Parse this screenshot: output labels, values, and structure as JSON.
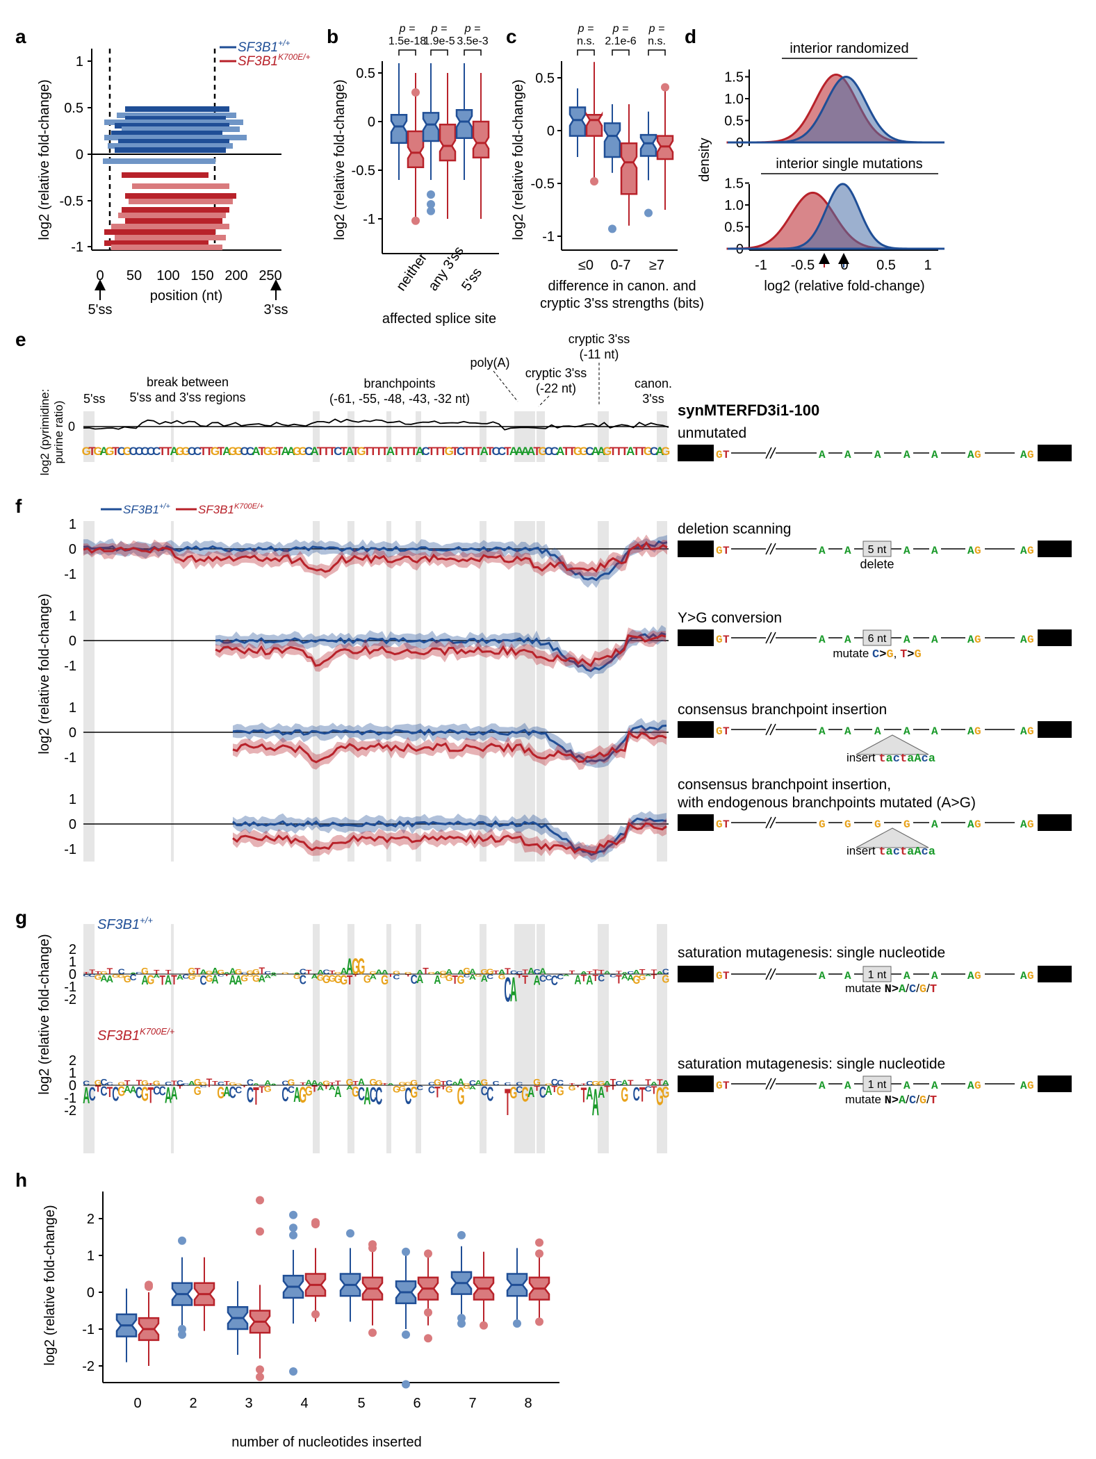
{
  "panels": {
    "a": "a",
    "b": "b",
    "c": "c",
    "d": "d",
    "e": "e",
    "f": "f",
    "g": "g",
    "h": "h"
  },
  "colors": {
    "wt": "#1f4e96",
    "wt_light": "#6f95c6",
    "mut": "#b8222a",
    "mut_light": "#d97a7d",
    "A": "#1a9a2a",
    "C": "#1f4e96",
    "G": "#e8a21a",
    "T": "#c0262c"
  },
  "legend": {
    "wt_prefix": "SF3B1",
    "wt_sup": "+/+",
    "mut_prefix": "SF3B1",
    "mut_sup": "K700E/+"
  },
  "panel_a": {
    "ylabel": "log2 (relative fold-change)",
    "yticks": [
      "1",
      "0.5",
      "0",
      "-0.5",
      "-1"
    ],
    "xticks": [
      "0",
      "50",
      "100",
      "150",
      "200",
      "250"
    ],
    "xlabel": "position (nt)",
    "arrow_5ss": "5'ss",
    "arrow_3ss": "3'ss"
  },
  "panel_b": {
    "pvals": [
      {
        "p": "p =",
        "v": "1.5e-18"
      },
      {
        "p": "p =",
        "v": "1.9e-5"
      },
      {
        "p": "p =",
        "v": "3.5e-3"
      }
    ],
    "yticks": [
      "0.5",
      "0",
      "-0.5",
      "-1"
    ],
    "ylabel": "log2 (relative fold-change)",
    "categories": [
      "neither",
      "any 3'ss",
      "5'ss"
    ],
    "xlabel": "affected splice site",
    "medians_wt": [
      -0.05,
      -0.03,
      0.0
    ],
    "medians_mut": [
      -0.32,
      -0.25,
      -0.22
    ]
  },
  "panel_c": {
    "pvals": [
      {
        "p": "p =",
        "v": "n.s."
      },
      {
        "p": "p =",
        "v": "2.1e-6"
      },
      {
        "p": "p =",
        "v": "n.s."
      }
    ],
    "yticks": [
      "0.5",
      "0",
      "-0.5",
      "-1"
    ],
    "ylabel": "log2 (relative fold-change)",
    "categories": [
      "≤0",
      "0-7",
      "≥7"
    ],
    "xlabel1": "difference in canon. and",
    "xlabel2": "cryptic 3'ss strengths (bits)",
    "medians_wt": [
      0.1,
      -0.05,
      -0.12
    ],
    "medians_mut": [
      0.1,
      -0.3,
      -0.15
    ]
  },
  "panel_d": {
    "top_title": "interior randomized",
    "bottom_title": "interior single mutations",
    "yticks": [
      "1.5",
      "1.0",
      "0.5",
      "0"
    ],
    "ylabel": "density",
    "xticks": [
      "-1",
      "-0.5",
      "0",
      "0.5",
      "1"
    ],
    "xlabel": "log2 (relative fold-change)"
  },
  "panel_e": {
    "ylabel1": "log2 (pyrimidine:",
    "ylabel2": "purine ratio)",
    "zero": "0",
    "ann_5ss": "5'ss",
    "ann_break1": "break between",
    "ann_break2": "5'ss and 3'ss regions",
    "ann_bp1": "branchpoints",
    "ann_bp2": "(-61, -55, -48, -43, -32 nt)",
    "ann_polya": "poly(A)",
    "ann_c22a": "cryptic 3'ss",
    "ann_c22b": "(-22 nt)",
    "ann_c11a": "cryptic 3'ss",
    "ann_c11b": "(-11 nt)",
    "ann_canon1": "canon.",
    "ann_canon2": "3'ss",
    "sequence": "GTGAGTCGCCCCCTTAGGCCTTGTAGGCCATGGTAAGGCATTTCTATGTTTTATTTTACTTTGTCTTTATCCTAAAATGCCATTGGCAAGTTTATTGCAG",
    "construct_name": "synMTERFD3i1-100",
    "construct_sub": "unmutated"
  },
  "panel_f": {
    "ylabel": "log2 (relative fold-change)",
    "yticks": [
      "1",
      "0",
      "-1"
    ],
    "schematics": [
      {
        "title": "deletion scanning",
        "box": "5 nt",
        "sub": "delete"
      },
      {
        "title": "Y>G conversion",
        "box": "6 nt",
        "sub": "mutate"
      },
      {
        "title": "consensus branchpoint insertion",
        "box": "",
        "sub": "insert"
      },
      {
        "title": "consensus branchpoint insertion,",
        "title2": "with endogenous branchpoints mutated (A>G)",
        "box": "",
        "sub": "insert"
      }
    ],
    "yg_mut1": "C>G",
    "yg_mut2": "T>G",
    "insert_seq": "tactaAca"
  },
  "panel_g": {
    "ylabel": "log2 (relative fold-change)",
    "yticks": [
      "2",
      "1",
      "0",
      "-1",
      "-2"
    ],
    "wt_label": "SF3B1+/+",
    "mut_label": "SF3B1K700E/+",
    "sat_title": "saturation mutagenesis: single nucleotide",
    "box": "1 nt",
    "mutate_word": "mutate",
    "mutate_from": "N>",
    "mutate_to": [
      "A",
      "C",
      "G",
      "T"
    ]
  },
  "schematic_labels": {
    "gt": "GT",
    "a": "A",
    "ag": "AG",
    "g": "G"
  },
  "panel_h": {
    "ylabel": "log2 (relative fold-change)",
    "yticks": [
      "2",
      "1",
      "0",
      "-1",
      "-2"
    ],
    "xlabel": "number of nucleotides inserted",
    "categories": [
      "0",
      "2",
      "3",
      "4",
      "5",
      "6",
      "7",
      "8"
    ],
    "medians_wt": [
      -0.9,
      -0.05,
      -0.7,
      0.15,
      0.2,
      0.0,
      0.25,
      0.2
    ],
    "medians_mut": [
      -1.0,
      -0.05,
      -0.8,
      0.2,
      0.1,
      0.1,
      0.1,
      0.1
    ]
  }
}
